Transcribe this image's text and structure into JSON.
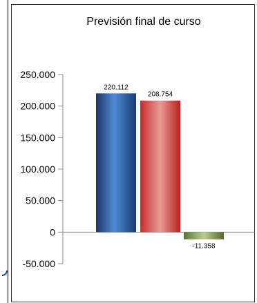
{
  "chart_data": {
    "type": "bar",
    "title": "Previsión final de curso",
    "categories": [
      "",
      "",
      ""
    ],
    "values": [
      220112,
      208754,
      -11358
    ],
    "data_labels": [
      "220.112",
      "208.754",
      "-11.358"
    ],
    "ylim": [
      -50000,
      250000
    ],
    "yticks": [
      {
        "value": 250000,
        "label": "250.000"
      },
      {
        "value": 200000,
        "label": "200.000"
      },
      {
        "value": 150000,
        "label": "150.000"
      },
      {
        "value": 100000,
        "label": "100.000"
      },
      {
        "value": 50000,
        "label": "50.000"
      },
      {
        "value": 0,
        "label": "0"
      },
      {
        "value": -50000,
        "label": "-50.000"
      }
    ],
    "bar_colors": [
      "#2a5aa8",
      "#c0353a",
      "#7f9a4c"
    ],
    "grid": false,
    "legend": "none"
  }
}
